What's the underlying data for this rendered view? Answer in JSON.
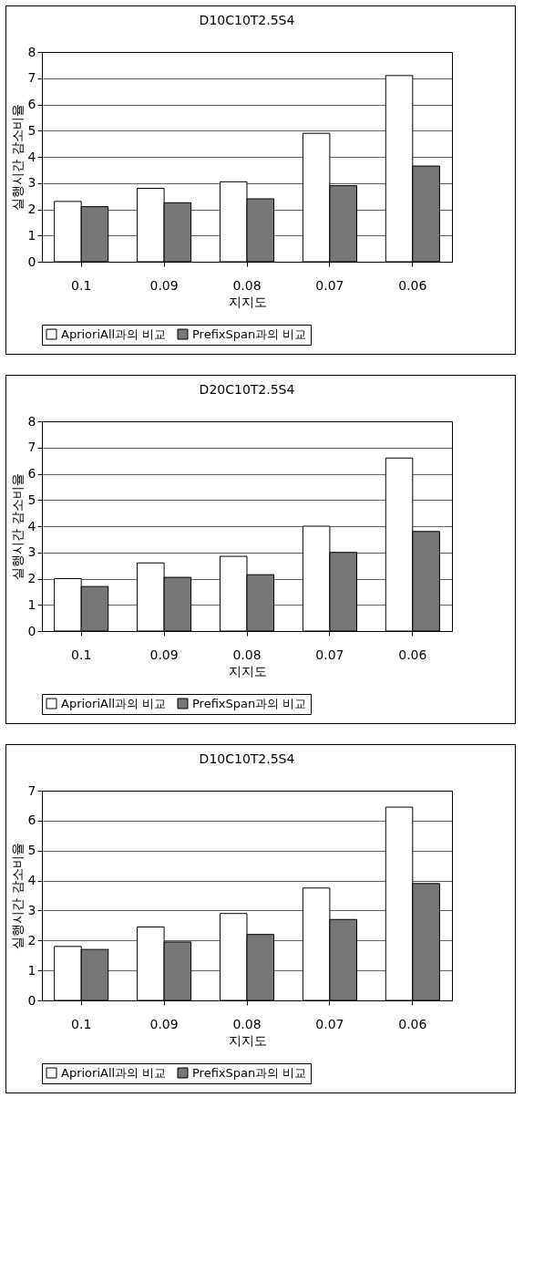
{
  "chart_data": [
    {
      "type": "bar",
      "title": "D10C10T2.5S4",
      "xlabel": "지지도",
      "ylabel": "실행시간 감소비율",
      "categories": [
        "0.1",
        "0.09",
        "0.08",
        "0.07",
        "0.06"
      ],
      "series": [
        {
          "name": "AprioriAll과의 비교",
          "color": "#ffffff",
          "values": [
            2.3,
            2.8,
            3.05,
            4.9,
            7.1
          ]
        },
        {
          "name": "PrefixSpan과의 비교",
          "color": "#777777",
          "values": [
            2.1,
            2.25,
            2.4,
            2.9,
            3.65
          ]
        }
      ],
      "ylim": [
        0,
        8
      ],
      "yticks": [
        0,
        1,
        2,
        3,
        4,
        5,
        6,
        7,
        8
      ],
      "grid": "y",
      "legend": "bottom"
    },
    {
      "type": "bar",
      "title": "D20C10T2.5S4",
      "xlabel": "지지도",
      "ylabel": "실행시간 감소비율",
      "categories": [
        "0.1",
        "0.09",
        "0.08",
        "0.07",
        "0.06"
      ],
      "series": [
        {
          "name": "AprioriAll과의 비교",
          "color": "#ffffff",
          "values": [
            2.0,
            2.6,
            2.85,
            4.0,
            6.6
          ]
        },
        {
          "name": "PrefixSpan과의 비교",
          "color": "#777777",
          "values": [
            1.7,
            2.05,
            2.15,
            3.0,
            3.8
          ]
        }
      ],
      "ylim": [
        0,
        8
      ],
      "yticks": [
        0,
        1,
        2,
        3,
        4,
        5,
        6,
        7,
        8
      ],
      "grid": "y",
      "legend": "bottom"
    },
    {
      "type": "bar",
      "title": "D10C10T2.5S4",
      "xlabel": "지지도",
      "ylabel": "실행시간 감소비율",
      "categories": [
        "0.1",
        "0.09",
        "0.08",
        "0.07",
        "0.06"
      ],
      "series": [
        {
          "name": "AprioriAll과의 비교",
          "color": "#ffffff",
          "values": [
            1.8,
            2.45,
            2.9,
            3.75,
            6.45
          ]
        },
        {
          "name": "PrefixSpan과의 비교",
          "color": "#777777",
          "values": [
            1.7,
            1.95,
            2.2,
            2.7,
            3.9
          ]
        }
      ],
      "ylim": [
        0,
        7
      ],
      "yticks": [
        0,
        1,
        2,
        3,
        4,
        5,
        6,
        7
      ],
      "grid": "y",
      "legend": "bottom"
    }
  ]
}
